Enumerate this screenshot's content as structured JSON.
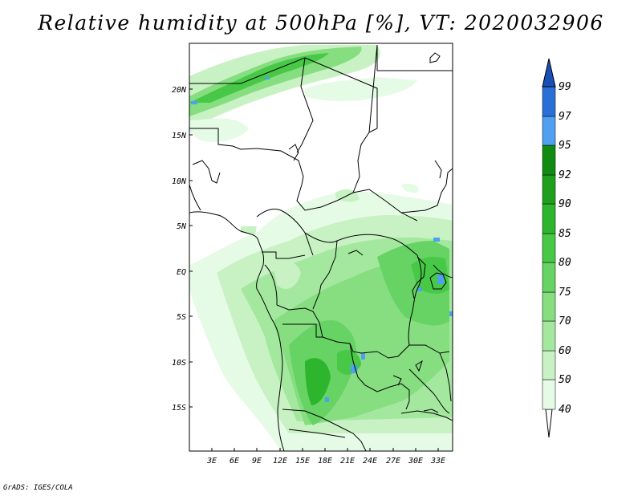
{
  "map": {
    "title": "Relative humidity at 500hPa [%], VT: 2020032906",
    "credit": "GrADS: IGES/COLA",
    "lat_labels": [
      "20N",
      "15N",
      "10N",
      "5N",
      "EQ",
      "5S",
      "10S",
      "15S"
    ],
    "lon_labels": [
      "3E",
      "6E",
      "9E",
      "12E",
      "15E",
      "18E",
      "21E",
      "24E",
      "27E",
      "30E",
      "33E"
    ]
  },
  "colorbar": {
    "levels": [
      "40",
      "50",
      "60",
      "70",
      "75",
      "80",
      "85",
      "90",
      "92",
      "95",
      "97",
      "99"
    ],
    "colors": [
      "#ffffff",
      "#e6fbe6",
      "#c8f2c3",
      "#a4e89f",
      "#86de80",
      "#66d364",
      "#47c846",
      "#2eb52e",
      "#1ea01e",
      "#118a11",
      "#4fa0f0",
      "#2a6fd8",
      "#1a4fb8"
    ]
  }
}
